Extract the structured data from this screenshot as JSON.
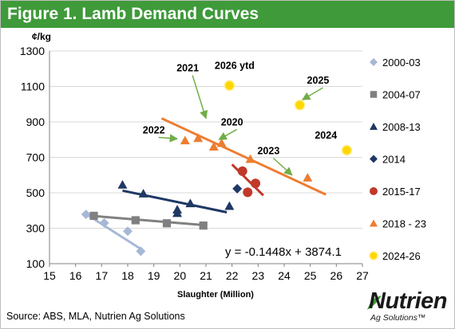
{
  "title": "Figure 1. Lamb Demand Curves",
  "source": "Source: ABS, MLA, Nutrien Ag Solutions",
  "logo": {
    "word": "Nutrien",
    "sub": "Ag Solutions™"
  },
  "colors": {
    "title_bar": "#3f9a3a",
    "s2000": "#a7b8d6",
    "s2004": "#808080",
    "s2008": "#1f3864",
    "s2014": "#1f3864",
    "s2015": "#c0392b",
    "s2018": "#ed7d31",
    "s2024": "#ffd700"
  },
  "chart_data": {
    "type": "scatter",
    "title": "Figure 1. Lamb Demand Curves",
    "xlabel": "Slaughter (Million)",
    "ylabel": "¢/kg",
    "xlim": [
      15,
      27
    ],
    "ylim": [
      100,
      1300
    ],
    "xticks": [
      "15",
      "16",
      "17",
      "18",
      "19",
      "20",
      "21",
      "22",
      "23",
      "24",
      "25",
      "26",
      "27"
    ],
    "yticks": [
      "100",
      "300",
      "500",
      "700",
      "900",
      "1100",
      "1300"
    ],
    "grid": true,
    "legend": "right",
    "series": [
      {
        "name": "2000-03",
        "marker": "diamond",
        "color": "#a7b8d6",
        "points": [
          [
            16.4,
            378
          ],
          [
            17.1,
            330
          ],
          [
            18.0,
            283
          ],
          [
            18.5,
            170
          ]
        ],
        "trend": [
          [
            16.4,
            380
          ],
          [
            18.5,
            183
          ]
        ]
      },
      {
        "name": "2004-07",
        "marker": "square",
        "color": "#808080",
        "points": [
          [
            16.7,
            370
          ],
          [
            18.3,
            345
          ],
          [
            19.5,
            328
          ],
          [
            20.9,
            315
          ]
        ],
        "trend": [
          [
            16.6,
            370
          ],
          [
            20.9,
            318
          ]
        ]
      },
      {
        "name": "2008-13",
        "marker": "triangle",
        "color": "#1f3864",
        "points": [
          [
            17.8,
            545
          ],
          [
            18.6,
            495
          ],
          [
            19.9,
            405
          ],
          [
            19.9,
            385
          ],
          [
            20.4,
            440
          ],
          [
            21.9,
            425
          ]
        ],
        "trend": [
          [
            17.8,
            512
          ],
          [
            21.8,
            390
          ]
        ]
      },
      {
        "name": "2014",
        "marker": "diamond",
        "color": "#1f3864",
        "points": [
          [
            22.2,
            523
          ]
        ]
      },
      {
        "name": "2015-17",
        "marker": "circle",
        "color": "#c0392b",
        "points": [
          [
            22.4,
            622
          ],
          [
            22.6,
            503
          ],
          [
            22.9,
            553
          ]
        ],
        "trend": [
          [
            22.0,
            660
          ],
          [
            23.2,
            485
          ]
        ]
      },
      {
        "name": "2018 - 23",
        "marker": "triangle",
        "color": "#ed7d31",
        "points": [
          [
            20.2,
            795
          ],
          [
            20.7,
            808
          ],
          [
            21.3,
            760
          ],
          [
            21.6,
            780
          ],
          [
            22.7,
            690
          ],
          [
            24.9,
            585
          ]
        ],
        "trend": [
          [
            19.3,
            920
          ],
          [
            25.6,
            490
          ]
        ]
      },
      {
        "name": "2024-26",
        "marker": "circle",
        "color": "#ffd700",
        "points": [
          [
            21.9,
            1105
          ],
          [
            24.6,
            995
          ],
          [
            26.4,
            740
          ]
        ]
      }
    ],
    "annotations": [
      {
        "text": "2026 ytd",
        "x": 22.1,
        "y": 1200
      },
      {
        "text": "2021",
        "x": 20.3,
        "y": 1185,
        "arrow_to": [
          21.0,
          920
        ]
      },
      {
        "text": "2025",
        "x": 25.3,
        "y": 1115,
        "arrow_to": [
          24.7,
          1025
        ]
      },
      {
        "text": "2022",
        "x": 19.0,
        "y": 835,
        "arrow_to": [
          19.9,
          805
        ]
      },
      {
        "text": "2020",
        "x": 22.0,
        "y": 880,
        "arrow_to": [
          21.5,
          800
        ]
      },
      {
        "text": "2023",
        "x": 23.4,
        "y": 718,
        "arrow_to": [
          24.3,
          600
        ]
      },
      {
        "text": "2024",
        "x": 25.6,
        "y": 805
      }
    ],
    "equation": "y = -0.1448x + 3874.1"
  }
}
